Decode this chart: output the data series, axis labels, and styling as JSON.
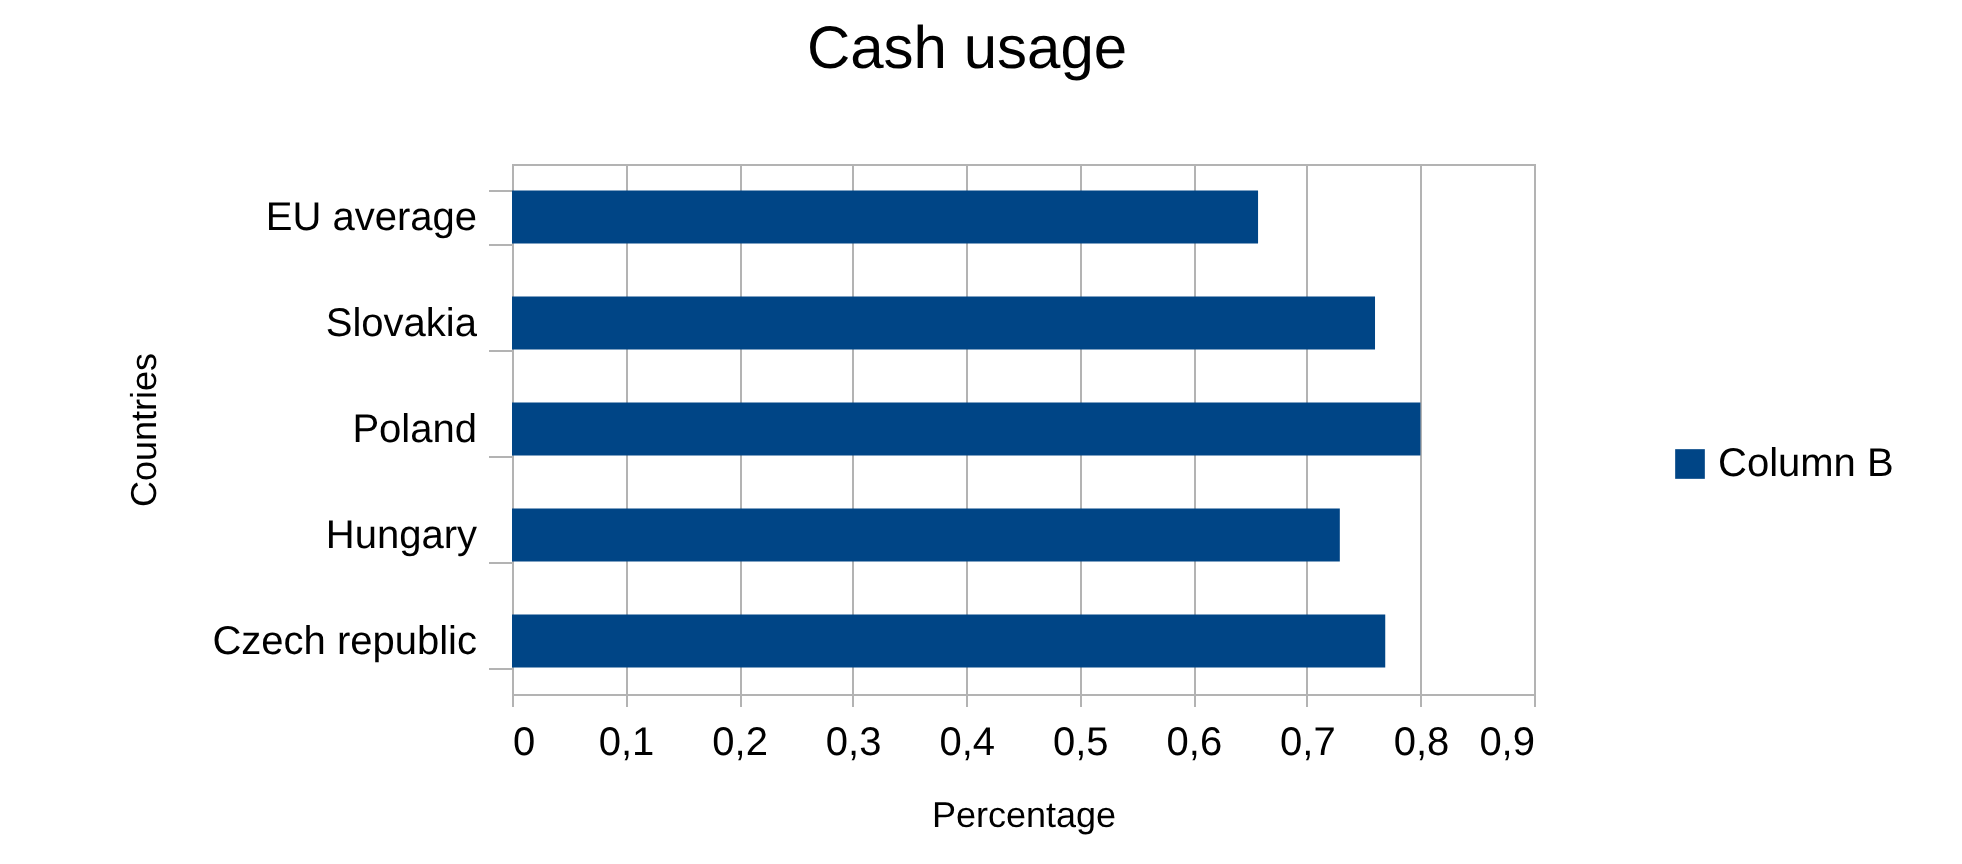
{
  "chart_data": {
    "type": "bar",
    "orientation": "horizontal",
    "title": "Cash usage",
    "xlabel": "Percentage",
    "ylabel": "Countries",
    "categories": [
      "EU average",
      "Slovakia",
      "Poland",
      "Hungary",
      "Czech republic"
    ],
    "series": [
      {
        "name": "Column B",
        "color": "#004586",
        "values": [
          0.657,
          0.76,
          0.8,
          0.729,
          0.769
        ]
      }
    ],
    "xlim": [
      0,
      0.9
    ],
    "xticks": [
      0,
      {
        "value": 0.1,
        "label": "0,1"
      },
      {
        "value": 0.2,
        "label": "0,2"
      },
      {
        "value": 0.3,
        "label": "0,3"
      },
      {
        "value": 0.4,
        "label": "0,4"
      },
      {
        "value": 0.5,
        "label": "0,5"
      },
      {
        "value": 0.6,
        "label": "0,6"
      },
      {
        "value": 0.7,
        "label": "0,7"
      },
      {
        "value": 0.8,
        "label": "0,8"
      },
      {
        "value": 0.9,
        "label": "0,9"
      }
    ],
    "grid": "x",
    "legend": "right"
  }
}
